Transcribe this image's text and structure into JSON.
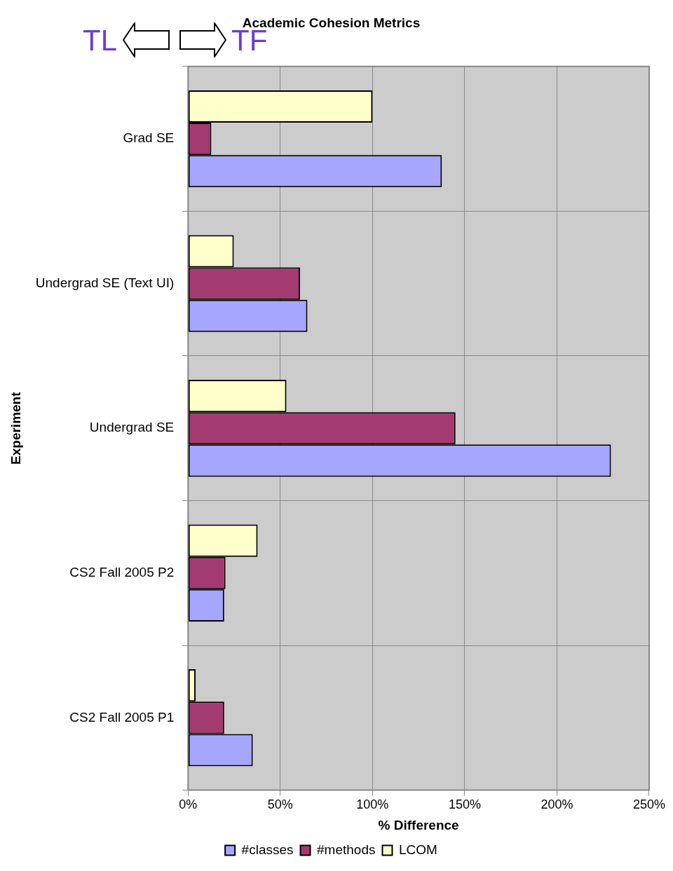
{
  "chart_data": {
    "type": "bar",
    "orientation": "horizontal",
    "title": "Academic Cohesion Metrics",
    "xlabel": "% Difference",
    "ylabel": "Experiment",
    "categories": [
      "Grad SE",
      "Undergrad SE (Text UI)",
      "Undergrad SE",
      "CS2 Fall 2005 P2",
      "CS2 Fall 2005 P1"
    ],
    "series": [
      {
        "name": "#classes",
        "color": "#a6a6ff",
        "values": [
          137.6,
          64.7,
          229.3,
          19.6,
          35.1
        ]
      },
      {
        "name": "#methods",
        "color": "#a33a70",
        "values": [
          12.6,
          60.7,
          145,
          20.3,
          19.6
        ]
      },
      {
        "name": "LCOM",
        "color": "#ffffcc",
        "values": [
          100,
          24.8,
          53.3,
          37.7,
          4.1
        ]
      }
    ],
    "xlim": [
      0,
      250
    ],
    "xticks": [
      {
        "value": 0,
        "label": "0%"
      },
      {
        "value": 50,
        "label": "50%"
      },
      {
        "value": 100,
        "label": "100%"
      },
      {
        "value": 150,
        "label": "150%"
      },
      {
        "value": 200,
        "label": "200%"
      },
      {
        "value": 250,
        "label": "250%"
      }
    ],
    "grid": true,
    "legend": "bottom",
    "annotations": [
      "TL",
      "TF"
    ]
  }
}
